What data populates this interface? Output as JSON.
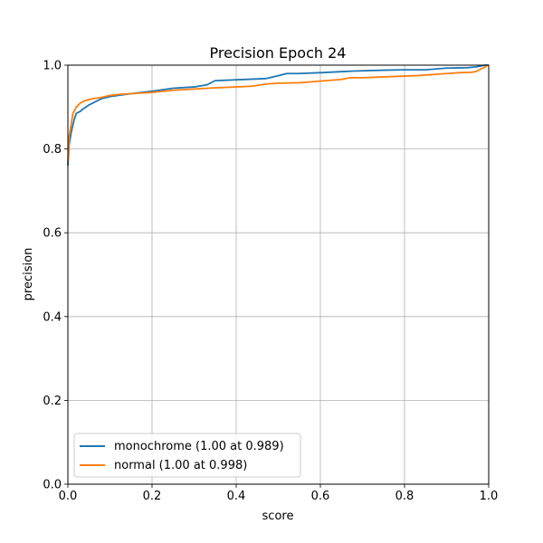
{
  "chart_data": {
    "type": "line",
    "title": "Precision Epoch 24",
    "xlabel": "score",
    "ylabel": "precision",
    "xlim": [
      0,
      1
    ],
    "ylim": [
      0,
      1
    ],
    "xticks": [
      "0.0",
      "0.2",
      "0.4",
      "0.6",
      "0.8",
      "1.0"
    ],
    "yticks": [
      "0.0",
      "0.2",
      "0.4",
      "0.6",
      "0.8",
      "1.0"
    ],
    "grid": true,
    "legend_position": "lower-left",
    "series": [
      {
        "name": "monochrome (1.00 at 0.989)",
        "color": "#1f77b4",
        "x": [
          0.0,
          0.003,
          0.008,
          0.015,
          0.02,
          0.03,
          0.035,
          0.04,
          0.05,
          0.06,
          0.07,
          0.08,
          0.1,
          0.12,
          0.15,
          0.2,
          0.25,
          0.3,
          0.33,
          0.35,
          0.4,
          0.47,
          0.5,
          0.52,
          0.55,
          0.6,
          0.66,
          0.68,
          0.75,
          0.8,
          0.85,
          0.9,
          0.95,
          0.97,
          0.98,
          0.99,
          1.0
        ],
        "y": [
          0.76,
          0.81,
          0.84,
          0.87,
          0.885,
          0.89,
          0.895,
          0.898,
          0.905,
          0.91,
          0.915,
          0.92,
          0.925,
          0.928,
          0.932,
          0.938,
          0.945,
          0.948,
          0.953,
          0.963,
          0.965,
          0.968,
          0.975,
          0.98,
          0.98,
          0.982,
          0.985,
          0.986,
          0.988,
          0.989,
          0.989,
          0.993,
          0.994,
          0.996,
          0.998,
          1.0,
          1.0
        ]
      },
      {
        "name": "normal (1.00 at 0.998)",
        "color": "#ff7f0e",
        "x": [
          0.0,
          0.003,
          0.008,
          0.012,
          0.02,
          0.03,
          0.04,
          0.05,
          0.06,
          0.08,
          0.1,
          0.12,
          0.15,
          0.2,
          0.25,
          0.3,
          0.35,
          0.4,
          0.44,
          0.47,
          0.5,
          0.55,
          0.6,
          0.65,
          0.67,
          0.7,
          0.75,
          0.8,
          0.83,
          0.9,
          0.93,
          0.96,
          0.97,
          0.98,
          0.99,
          0.998
        ],
        "y": [
          0.77,
          0.83,
          0.86,
          0.885,
          0.9,
          0.91,
          0.915,
          0.918,
          0.92,
          0.923,
          0.928,
          0.93,
          0.932,
          0.935,
          0.94,
          0.943,
          0.946,
          0.948,
          0.95,
          0.955,
          0.957,
          0.958,
          0.962,
          0.966,
          0.97,
          0.97,
          0.972,
          0.974,
          0.975,
          0.98,
          0.982,
          0.983,
          0.985,
          0.99,
          0.995,
          1.0
        ]
      }
    ]
  }
}
